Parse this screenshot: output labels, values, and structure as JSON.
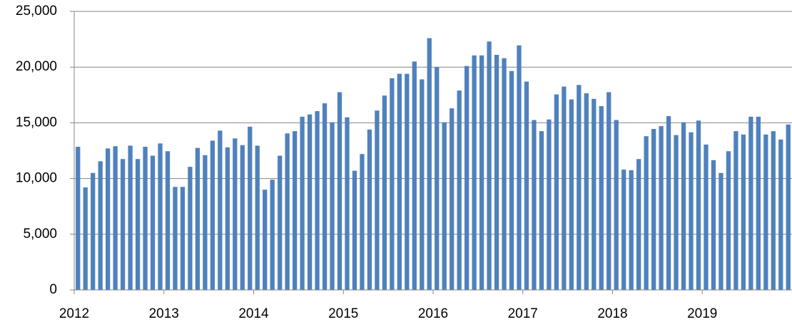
{
  "chart_data": {
    "type": "bar",
    "color": "#4f81bd",
    "grid": true,
    "categories": [
      "2012",
      null,
      null,
      null,
      null,
      null,
      null,
      null,
      null,
      null,
      null,
      null,
      "2013",
      null,
      null,
      null,
      null,
      null,
      null,
      null,
      null,
      null,
      null,
      null,
      "2014",
      null,
      null,
      null,
      null,
      null,
      null,
      null,
      null,
      null,
      null,
      null,
      "2015",
      null,
      null,
      null,
      null,
      null,
      null,
      null,
      null,
      null,
      null,
      null,
      "2016",
      null,
      null,
      null,
      null,
      null,
      null,
      null,
      null,
      null,
      null,
      null,
      "2017",
      null,
      null,
      null,
      null,
      null,
      null,
      null,
      null,
      null,
      null,
      null,
      "2018",
      null,
      null,
      null,
      null,
      null,
      null,
      null,
      null,
      null,
      null,
      null,
      "2019",
      null,
      null,
      null,
      null,
      null,
      null,
      null,
      null,
      null,
      null,
      null
    ],
    "values": [
      12850,
      9200,
      10500,
      11550,
      12700,
      12900,
      11750,
      12950,
      11750,
      12850,
      12050,
      13150,
      12450,
      9250,
      9250,
      11050,
      12750,
      12100,
      13400,
      14300,
      12800,
      13600,
      13000,
      14650,
      12950,
      9000,
      9900,
      12050,
      14050,
      14250,
      15550,
      15750,
      16050,
      16750,
      15050,
      17750,
      15500,
      10700,
      12200,
      14400,
      16100,
      17450,
      19000,
      19400,
      19400,
      20500,
      18900,
      22600,
      20000,
      15050,
      16300,
      17900,
      20100,
      21050,
      21050,
      22300,
      21100,
      20800,
      19650,
      21950,
      18700,
      15250,
      14250,
      15300,
      17550,
      18250,
      17100,
      18400,
      17650,
      17150,
      16500,
      17750,
      15250,
      10800,
      10750,
      11750,
      13800,
      14450,
      14700,
      15600,
      13900,
      15050,
      14150,
      15200,
      13050,
      11650,
      10500,
      12450,
      14250,
      13950,
      15550,
      15550,
      13950,
      14250,
      13500,
      14850
    ],
    "ylim": [
      0,
      25000
    ],
    "yticks": [
      0,
      {
        "value": 5000,
        "label": "5,000"
      },
      {
        "value": 10000,
        "label": "10,000"
      },
      {
        "value": 15000,
        "label": "15,000"
      },
      {
        "value": 20000,
        "label": "20,000"
      },
      {
        "value": 25000,
        "label": "25,000"
      }
    ]
  }
}
